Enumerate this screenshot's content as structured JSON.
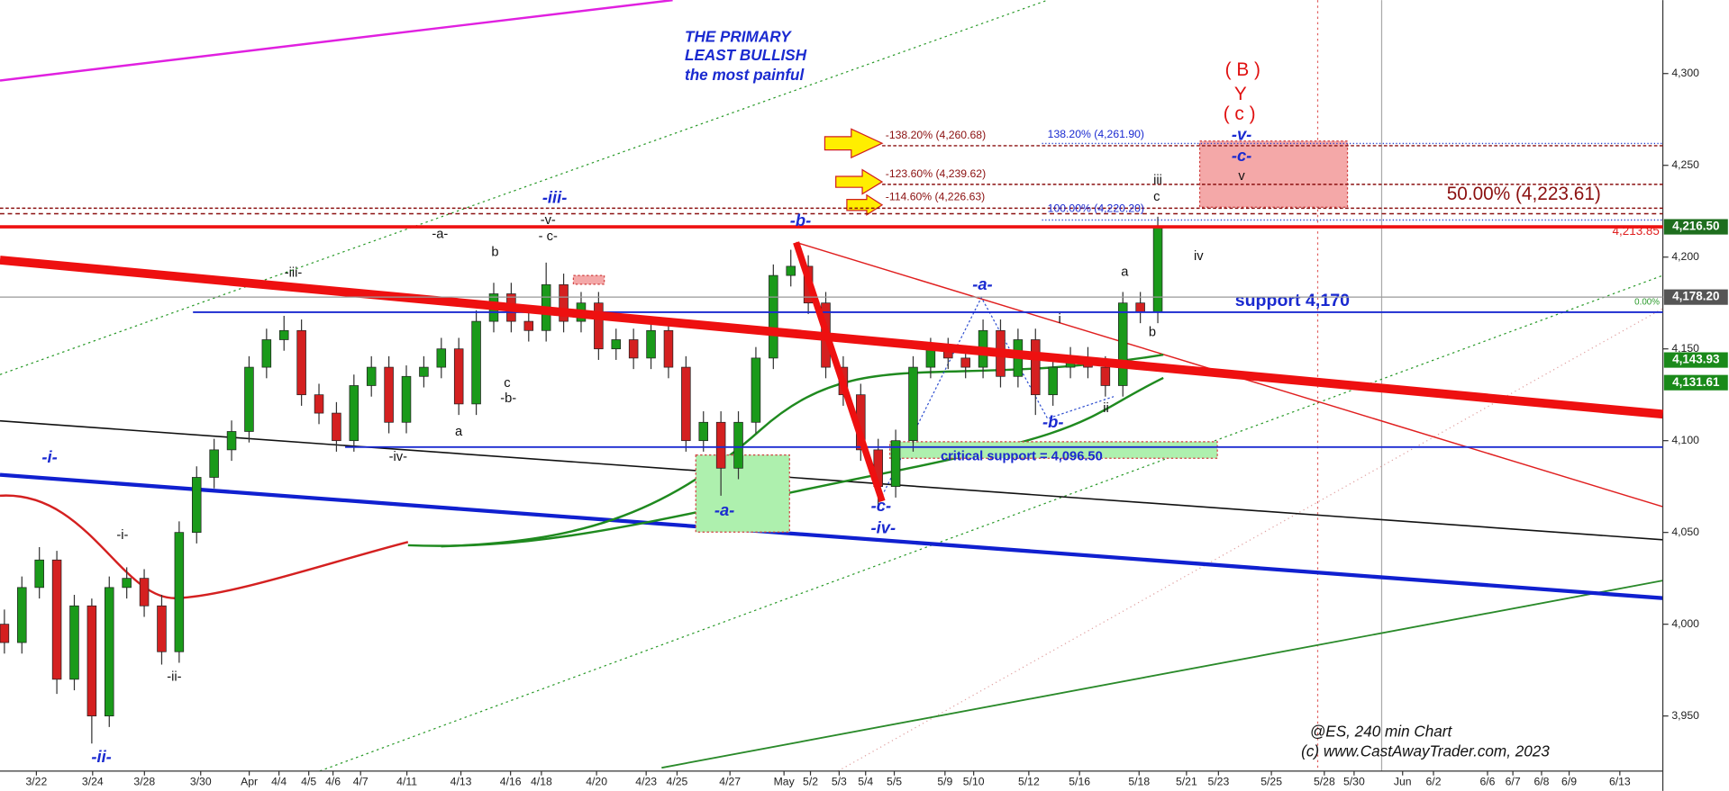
{
  "chart_data": {
    "type": "candlestick",
    "ylim": [
      3920,
      4340
    ],
    "yticks": [
      {
        "value": 3950,
        "label": "3,950"
      },
      {
        "value": 4000,
        "label": "4,000"
      },
      {
        "value": 4050,
        "label": "4,050"
      },
      {
        "value": 4100,
        "label": "4,100"
      },
      {
        "value": 4150,
        "label": "4,150"
      },
      {
        "value": 4200,
        "label": "4,200"
      },
      {
        "value": 4250,
        "label": "4,250"
      },
      {
        "value": 4300,
        "label": "4,300"
      }
    ],
    "categories": [
      "3/22",
      "3/24",
      "3/28",
      "3/30",
      "Apr",
      "4/4",
      "4/5",
      "4/6",
      "4/7",
      "4/11",
      "4/13",
      "4/16",
      "4/18",
      "4/20",
      "4/23",
      "4/25",
      "4/27",
      "May",
      "5/2",
      "5/3",
      "5/4",
      "5/5",
      "5/9",
      "5/10",
      "5/12",
      "5/16",
      "5/18",
      "5/21",
      "5/23",
      "5/25",
      "5/28",
      "5/30",
      "Jun",
      "6/2",
      "6/6",
      "6/7",
      "6/8",
      "6/9",
      "6/13"
    ],
    "up_color": "#1a9a1a",
    "down_color": "#d42020",
    "candles": [
      [
        4000,
        4008,
        3984,
        3990
      ],
      [
        3990,
        4026,
        3984,
        4020
      ],
      [
        4020,
        4042,
        4014,
        4035
      ],
      [
        4035,
        4040,
        3962,
        3970
      ],
      [
        3970,
        4016,
        3964,
        4010
      ],
      [
        4010,
        4014,
        3935,
        3950
      ],
      [
        3950,
        4026,
        3944,
        4020
      ],
      [
        4020,
        4031,
        4014,
        4025
      ],
      [
        4025,
        4030,
        4004,
        4010
      ],
      [
        4010,
        4016,
        3978,
        3985
      ],
      [
        3985,
        4056,
        3979,
        4050
      ],
      [
        4050,
        4086,
        4044,
        4080
      ],
      [
        4080,
        4101,
        4074,
        4095
      ],
      [
        4095,
        4111,
        4089,
        4105
      ],
      [
        4105,
        4146,
        4099,
        4140
      ],
      [
        4140,
        4161,
        4134,
        4155
      ],
      [
        4155,
        4168,
        4149,
        4160
      ],
      [
        4160,
        4166,
        4119,
        4125
      ],
      [
        4125,
        4131,
        4109,
        4115
      ],
      [
        4115,
        4121,
        4094,
        4100
      ],
      [
        4100,
        4136,
        4094,
        4130
      ],
      [
        4130,
        4146,
        4124,
        4140
      ],
      [
        4140,
        4146,
        4104,
        4110
      ],
      [
        4110,
        4141,
        4104,
        4135
      ],
      [
        4135,
        4146,
        4129,
        4140
      ],
      [
        4140,
        4156,
        4134,
        4150
      ],
      [
        4150,
        4156,
        4114,
        4120
      ],
      [
        4120,
        4171,
        4114,
        4165
      ],
      [
        4165,
        4186,
        4159,
        4180
      ],
      [
        4180,
        4186,
        4159,
        4165
      ],
      [
        4165,
        4171,
        4154,
        4160
      ],
      [
        4160,
        4197,
        4154,
        4185
      ],
      [
        4185,
        4191,
        4159,
        4165
      ],
      [
        4165,
        4181,
        4159,
        4175
      ],
      [
        4175,
        4181,
        4144,
        4150
      ],
      [
        4150,
        4161,
        4144,
        4155
      ],
      [
        4155,
        4161,
        4139,
        4145
      ],
      [
        4145,
        4166,
        4139,
        4160
      ],
      [
        4160,
        4166,
        4134,
        4140
      ],
      [
        4140,
        4146,
        4094,
        4100
      ],
      [
        4100,
        4116,
        4094,
        4110
      ],
      [
        4110,
        4116,
        4070,
        4085
      ],
      [
        4085,
        4116,
        4079,
        4110
      ],
      [
        4110,
        4151,
        4104,
        4145
      ],
      [
        4145,
        4196,
        4139,
        4190
      ],
      [
        4190,
        4204,
        4184,
        4195
      ],
      [
        4195,
        4201,
        4169,
        4175
      ],
      [
        4175,
        4181,
        4134,
        4140
      ],
      [
        4140,
        4146,
        4119,
        4125
      ],
      [
        4125,
        4131,
        4089,
        4095
      ],
      [
        4095,
        4101,
        4062,
        4075
      ],
      [
        4075,
        4106,
        4069,
        4100
      ],
      [
        4100,
        4146,
        4094,
        4140
      ],
      [
        4140,
        4156,
        4134,
        4150
      ],
      [
        4150,
        4156,
        4139,
        4145
      ],
      [
        4145,
        4151,
        4134,
        4140
      ],
      [
        4140,
        4166,
        4134,
        4160
      ],
      [
        4160,
        4166,
        4129,
        4135
      ],
      [
        4135,
        4161,
        4129,
        4155
      ],
      [
        4155,
        4161,
        4114,
        4125
      ],
      [
        4125,
        4146,
        4119,
        4140
      ],
      [
        4140,
        4151,
        4134,
        4145
      ],
      [
        4145,
        4151,
        4134,
        4140
      ],
      [
        4140,
        4146,
        4124,
        4130
      ],
      [
        4130,
        4181,
        4124,
        4175
      ],
      [
        4175,
        4181,
        4164,
        4170
      ],
      [
        4170,
        4222,
        4164,
        4216
      ]
    ],
    "fib_levels": [
      {
        "value": 4260.68,
        "label": "-138.20% (4,260.68)"
      },
      {
        "value": 4239.62,
        "label": "-123.60% (4,239.62)"
      },
      {
        "value": 4226.63,
        "label": "-114.60% (4,226.63)"
      },
      {
        "value": 4261.9,
        "label": "138.20% (4,261.90)"
      },
      {
        "value": 4220.2,
        "label": "100.00% (4,220.20)"
      },
      {
        "value": 4223.61,
        "label": "50.00% (4,223.61)"
      }
    ],
    "price_badges": [
      {
        "value": 4178.2,
        "label": "4,178.20"
      },
      {
        "value": 4216.5,
        "label": "4,216.50"
      },
      {
        "value": 4143.93,
        "label": "4,143.93"
      },
      {
        "value": 4131.61,
        "label": "4,131.61"
      }
    ],
    "support": {
      "value": 4170,
      "label": "support 4,170"
    },
    "critical_support": {
      "value": 4096.5,
      "label": "critical support = 4,096.50"
    },
    "marker": {
      "value": 4213.85,
      "label": "4,213.85"
    },
    "fib_zero": "0.00%",
    "headline": [
      "THE PRIMARY",
      "LEAST BULLISH",
      "the most painful"
    ],
    "red_labels": [
      "( B )",
      "Y",
      "( c )"
    ],
    "blue_labels": [
      "-v-",
      "-c-",
      "-iii-",
      "-b-",
      "-a-",
      "-b-",
      "-c-",
      "-iv-",
      "-a-",
      "-i-",
      "-ii-"
    ],
    "black_labels": [
      "v",
      "iii",
      "c",
      "iv",
      "a",
      "b",
      "i",
      "ii",
      "-v-",
      "- c-",
      "-iii-",
      "-a-",
      "b",
      "c",
      "-b-",
      "a",
      "-iv-",
      "-i-",
      "-ii-"
    ],
    "footer": [
      "@ES, 240 min Chart",
      "(c) www.CastAwayTrader.com, 2023"
    ]
  }
}
